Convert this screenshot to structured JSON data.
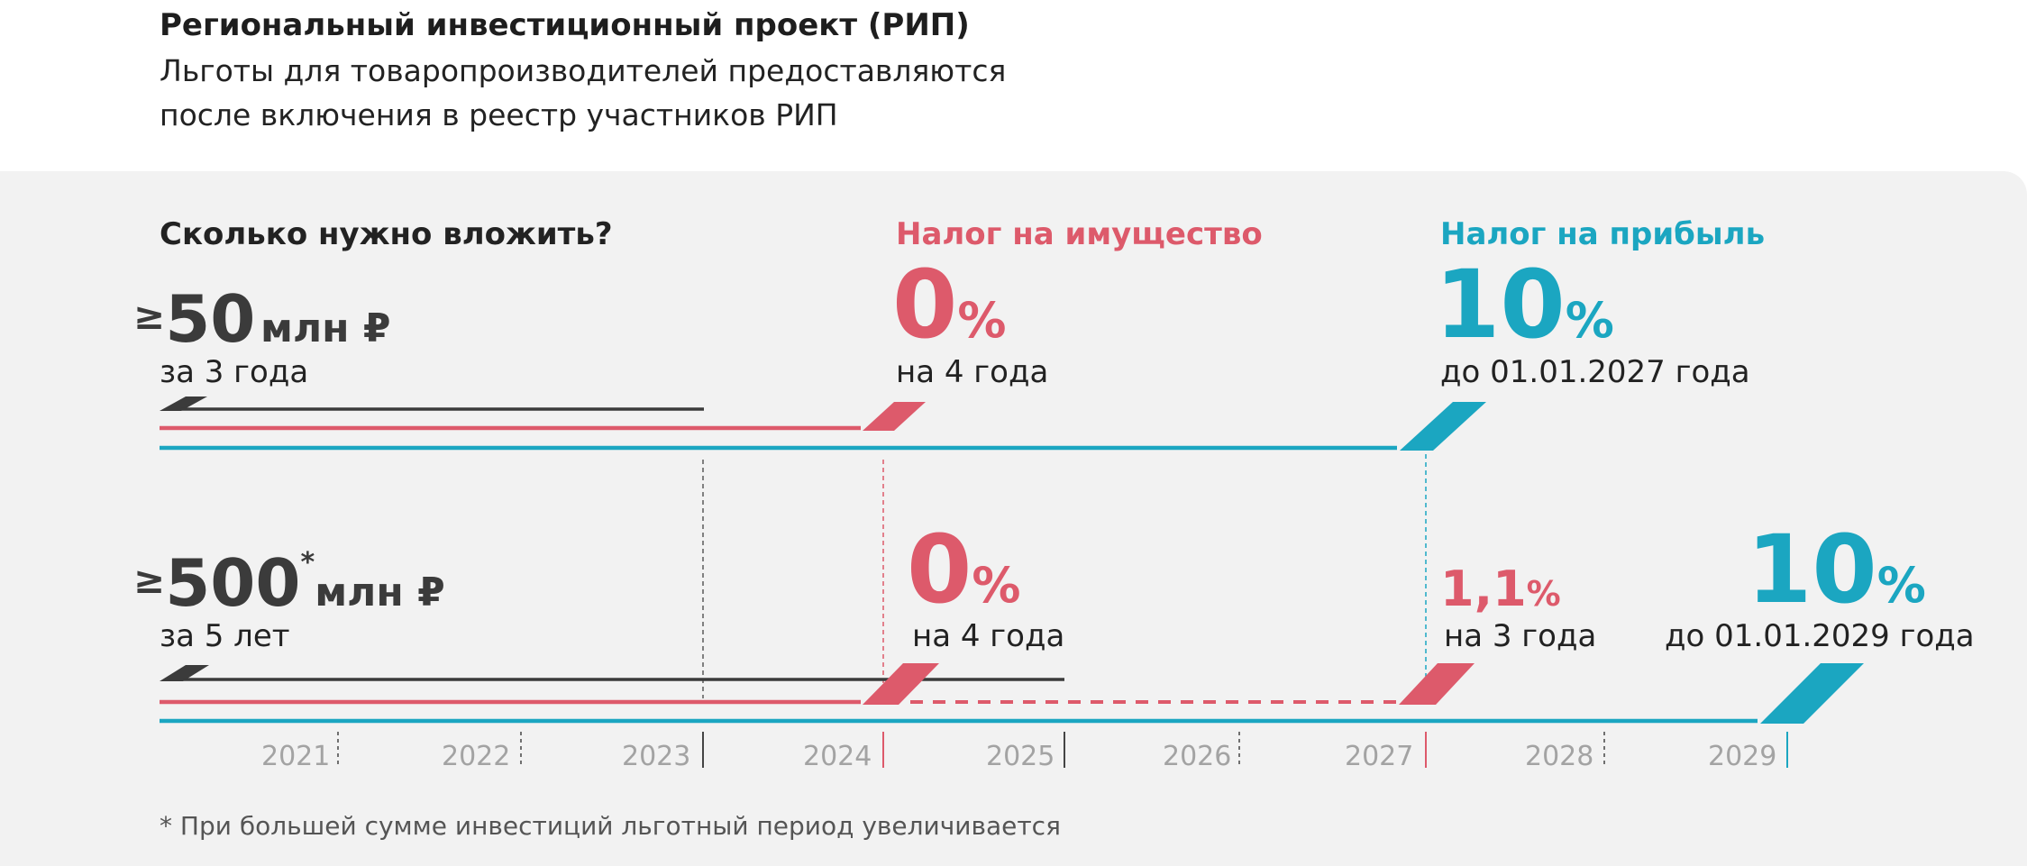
{
  "header": {
    "title": "Региональный инвестиционный проект (РИП)",
    "subtitle_line1": "Льготы для товаропроизводителей предоставляются",
    "subtitle_line2": "после включения в реестр участников РИП"
  },
  "columns": {
    "invest": "Сколько нужно вложить?",
    "property_tax": "Налог на имущество",
    "profit_tax": "Налог на прибыль"
  },
  "colors": {
    "investment": "#3b3b3b",
    "property_tax": "#dd5a6b",
    "profit_tax": "#1ba6c1"
  },
  "tier1": {
    "ge": "≥",
    "amount": "50",
    "unit": "млн ₽",
    "period": "за 3 года",
    "property_value": "0",
    "property_pct": "%",
    "property_period": "на 4 года",
    "profit_value": "10",
    "profit_pct": "%",
    "profit_period": "до 01.01.2027 года"
  },
  "tier2": {
    "ge": "≥",
    "amount": "500",
    "asterisk": "*",
    "unit": "млн ₽",
    "period": "за 5 лет",
    "property_value": "0",
    "property_pct": "%",
    "property_period": "на 4 года",
    "property2_value": "1,1",
    "property2_pct": "%",
    "property2_period": "на 3 года",
    "profit_value": "10",
    "profit_pct": "%",
    "profit_period": "до 01.01.2029 года"
  },
  "years": [
    "2021",
    "2022",
    "2023",
    "2024",
    "2025",
    "2026",
    "2027",
    "2028",
    "2029"
  ],
  "footnote": "* При большей сумме инвестиций льготный период увеличивается"
}
